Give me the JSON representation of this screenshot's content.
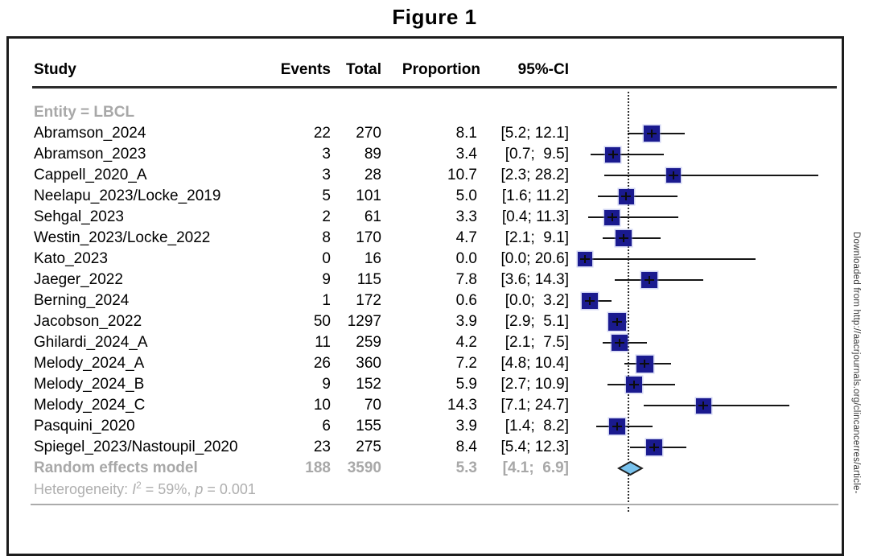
{
  "figure": {
    "title": "Figure 1"
  },
  "table": {
    "headers": {
      "study": "Study",
      "events": "Events",
      "total": "Total",
      "proportion": "Proportion",
      "ci": "95%-CI"
    }
  },
  "footnote": {
    "prefix": "Heterogeneity: ",
    "i": "I",
    "sup": "2",
    "mid": " = 59%, ",
    "p": "p",
    "tail": " = 0.001"
  },
  "watermark": {
    "text": "Downloaded from http://aacrjournals.org/clincancerres/article-"
  },
  "colors": {
    "square": "#1a1a8f",
    "diamond_fill": "#79c3ee",
    "diamond_border": "#1f1f1f",
    "gray_text": "#a8a8a8",
    "line": "#161616"
  },
  "chart_data": {
    "type": "forest",
    "title": "Figure 1",
    "group_label": "Entity = LBCL",
    "x_unit": "proportion_percent",
    "x_range_percent": [
      0,
      31
    ],
    "reference_line_percent": 5.3,
    "grid": false,
    "legend": null,
    "studies": [
      {
        "kind": "group",
        "label": "Entity = LBCL",
        "events": "",
        "total": "",
        "proportion": "",
        "ci": ""
      },
      {
        "kind": "study",
        "label": "Abramson_2024",
        "events": 22,
        "total": 270,
        "proportion": "8.1",
        "ci": "[5.2; 12.1]",
        "est": 8.1,
        "lo": 5.2,
        "hi": 12.1
      },
      {
        "kind": "study",
        "label": "Abramson_2023",
        "events": 3,
        "total": 89,
        "proportion": "3.4",
        "ci": "[0.7;  9.5]",
        "est": 3.4,
        "lo": 0.7,
        "hi": 9.5
      },
      {
        "kind": "study",
        "label": "Cappell_2020_A",
        "events": 3,
        "total": 28,
        "proportion": "10.7",
        "ci": "[2.3; 28.2]",
        "est": 10.7,
        "lo": 2.3,
        "hi": 28.2
      },
      {
        "kind": "study",
        "label": "Neelapu_2023/Locke_2019",
        "events": 5,
        "total": 101,
        "proportion": "5.0",
        "ci": "[1.6; 11.2]",
        "est": 5.0,
        "lo": 1.6,
        "hi": 11.2
      },
      {
        "kind": "study",
        "label": "Sehgal_2023",
        "events": 2,
        "total": 61,
        "proportion": "3.3",
        "ci": "[0.4; 11.3]",
        "est": 3.3,
        "lo": 0.4,
        "hi": 11.3
      },
      {
        "kind": "study",
        "label": "Westin_2023/Locke_2022",
        "events": 8,
        "total": 170,
        "proportion": "4.7",
        "ci": "[2.1;  9.1]",
        "est": 4.7,
        "lo": 2.1,
        "hi": 9.1
      },
      {
        "kind": "study",
        "label": "Kato_2023",
        "events": 0,
        "total": 16,
        "proportion": "0.0",
        "ci": "[0.0; 20.6]",
        "est": 0.0,
        "lo": 0.0,
        "hi": 20.6
      },
      {
        "kind": "study",
        "label": "Jaeger_2022",
        "events": 9,
        "total": 115,
        "proportion": "7.8",
        "ci": "[3.6; 14.3]",
        "est": 7.8,
        "lo": 3.6,
        "hi": 14.3
      },
      {
        "kind": "study",
        "label": "Berning_2024",
        "events": 1,
        "total": 172,
        "proportion": "0.6",
        "ci": "[0.0;  3.2]",
        "est": 0.6,
        "lo": 0.0,
        "hi": 3.2
      },
      {
        "kind": "study",
        "label": "Jacobson_2022",
        "events": 50,
        "total": 1297,
        "proportion": "3.9",
        "ci": "[2.9;  5.1]",
        "est": 3.9,
        "lo": 2.9,
        "hi": 5.1
      },
      {
        "kind": "study",
        "label": "Ghilardi_2024_A",
        "events": 11,
        "total": 259,
        "proportion": "4.2",
        "ci": "[2.1;  7.5]",
        "est": 4.2,
        "lo": 2.1,
        "hi": 7.5
      },
      {
        "kind": "study",
        "label": "Melody_2024_A",
        "events": 26,
        "total": 360,
        "proportion": "7.2",
        "ci": "[4.8; 10.4]",
        "est": 7.2,
        "lo": 4.8,
        "hi": 10.4
      },
      {
        "kind": "study",
        "label": "Melody_2024_B",
        "events": 9,
        "total": 152,
        "proportion": "5.9",
        "ci": "[2.7; 10.9]",
        "est": 5.9,
        "lo": 2.7,
        "hi": 10.9
      },
      {
        "kind": "study",
        "label": "Melody_2024_C",
        "events": 10,
        "total": 70,
        "proportion": "14.3",
        "ci": "[7.1; 24.7]",
        "est": 14.3,
        "lo": 7.1,
        "hi": 24.7
      },
      {
        "kind": "study",
        "label": "Pasquini_2020",
        "events": 6,
        "total": 155,
        "proportion": "3.9",
        "ci": "[1.4;  8.2]",
        "est": 3.9,
        "lo": 1.4,
        "hi": 8.2
      },
      {
        "kind": "study",
        "label": "Spiegel_2023/Nastoupil_2020",
        "events": 23,
        "total": 275,
        "proportion": "8.4",
        "ci": "[5.4; 12.3]",
        "est": 8.4,
        "lo": 5.4,
        "hi": 12.3
      },
      {
        "kind": "summary",
        "label": "Random effects model",
        "events": 188,
        "total": 3590,
        "proportion": "5.3",
        "ci": "[4.1;  6.9]",
        "est": 5.3,
        "lo": 4.1,
        "hi": 6.9
      }
    ],
    "heterogeneity": {
      "I2": "59%",
      "p": "0.001"
    }
  }
}
